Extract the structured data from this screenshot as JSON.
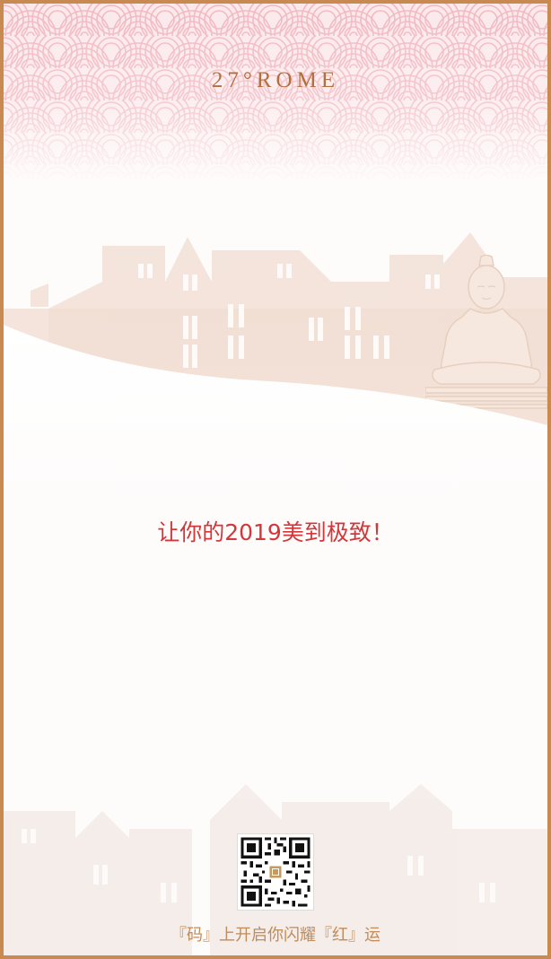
{
  "brand": {
    "logo_text": "27°ROME"
  },
  "poster": {
    "tagline": "让你的2019美到极致！",
    "footer": "『码』上开启你闪耀『红』运"
  },
  "colors": {
    "border": "#c98a52",
    "brand_text": "#b07040",
    "tagline_red": "#d2373a",
    "footer_text": "#c08c5a",
    "pattern_pink": "#f2b8c0",
    "skyline_tint": "#f1ddd2"
  },
  "icons": {
    "qr_code": "qr-code-icon",
    "qr_center_logo": "brand-seal-icon",
    "buddha": "buddha-statue-icon"
  }
}
